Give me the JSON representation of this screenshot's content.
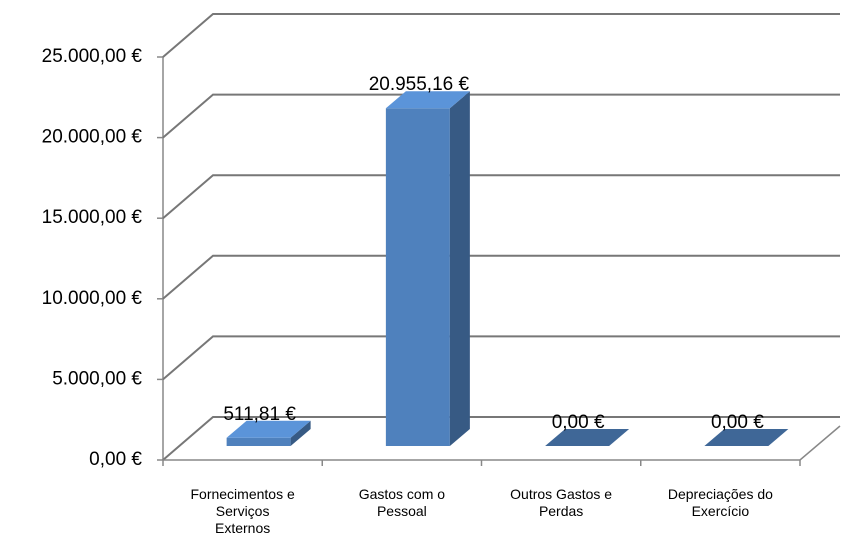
{
  "chart_data": {
    "type": "bar3d",
    "categories": [
      "Fornecimentos e\nServiços\nExternos",
      "Gastos com o\nPessoal",
      "Outros Gastos e\nPerdas",
      "Depreciações do\nExercício"
    ],
    "values": [
      511.81,
      20955.16,
      0,
      0
    ],
    "value_labels": [
      "511,81 €",
      "20.955,16 €",
      "0,00 €",
      "0,00 €"
    ],
    "color": "#4f81bd",
    "ylim": [
      0,
      25000
    ],
    "yticks": [
      {
        "value": 0,
        "label": "0,00 €"
      },
      {
        "value": 5000,
        "label": "5.000,00 €"
      },
      {
        "value": 10000,
        "label": "10.000,00 €"
      },
      {
        "value": 15000,
        "label": "15.000,00 €"
      },
      {
        "value": 20000,
        "label": "20.000,00 €"
      },
      {
        "value": 25000,
        "label": "25.000,00 €"
      }
    ],
    "grid": true
  }
}
